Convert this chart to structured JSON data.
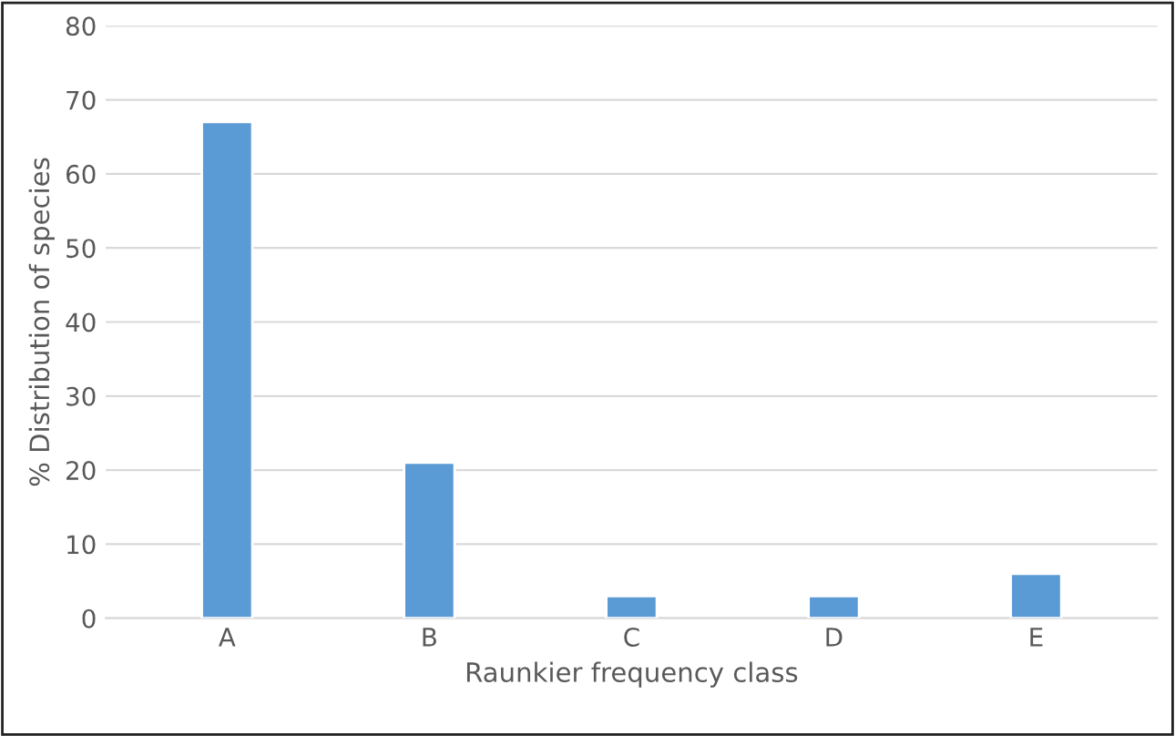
{
  "chart_data": {
    "type": "bar",
    "xlabel": "Raunkier frequency class",
    "ylabel": "% Distribution of species",
    "categories": [
      "A",
      "B",
      "C",
      "D",
      "E"
    ],
    "values": [
      67,
      21,
      3,
      3,
      6
    ],
    "color": "#5b9bd5",
    "ylim": [
      0,
      80
    ],
    "yticks": [
      0,
      10,
      20,
      30,
      40,
      50,
      60,
      70,
      80
    ],
    "grid": "y",
    "legend": false
  }
}
